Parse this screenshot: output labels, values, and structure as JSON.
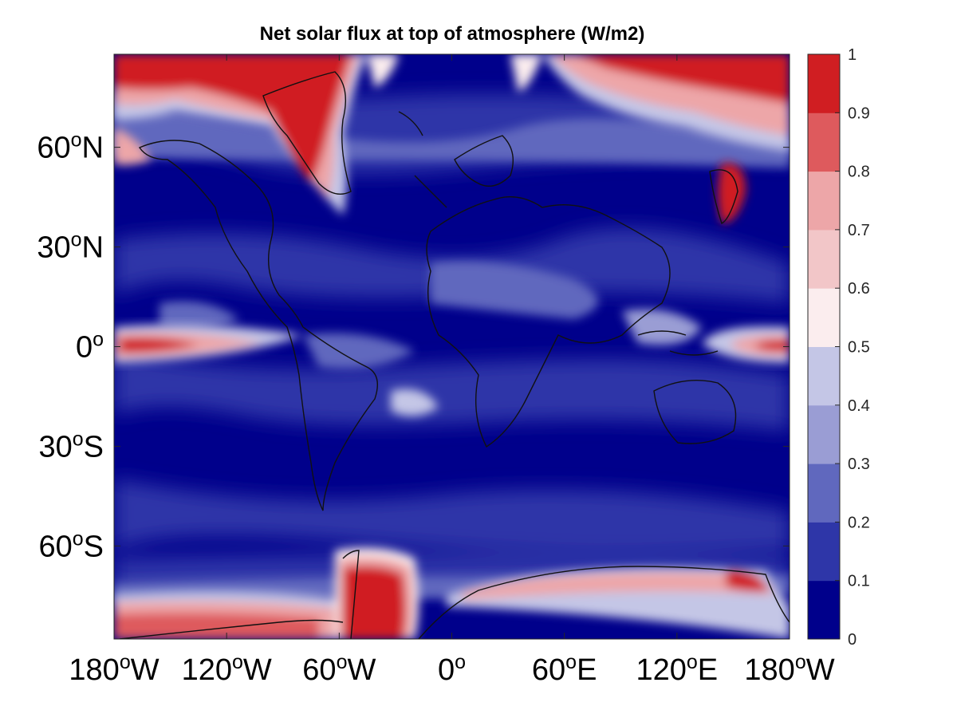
{
  "title": "Net solar flux at top of atmosphere (W/m2)",
  "map": {
    "projection": "equirectangular",
    "lon_range": [
      -180,
      180
    ],
    "lat_range": [
      -88,
      88
    ],
    "colormap": "blue-white-red",
    "colors": {
      "deep_blue": "#00008B",
      "mid_blue": "#2E36A8",
      "light_blue": "#6068BE",
      "pale_blue": "#C4C6E6",
      "white": "#FBEDEE",
      "pink": "#EDA6A8",
      "red": "#D01E22"
    },
    "lat_ticks": [
      {
        "deg": 60,
        "num": "60",
        "sup": "o",
        "hemi": "N"
      },
      {
        "deg": 30,
        "num": "30",
        "sup": "o",
        "hemi": "N"
      },
      {
        "deg": 0,
        "num": "0",
        "sup": "o",
        "hemi": ""
      },
      {
        "deg": -30,
        "num": "30",
        "sup": "o",
        "hemi": "S"
      },
      {
        "deg": -60,
        "num": "60",
        "sup": "o",
        "hemi": "S"
      }
    ],
    "lon_ticks": [
      {
        "deg": -180,
        "num": "180",
        "sup": "o",
        "hemi": "W"
      },
      {
        "deg": -120,
        "num": "120",
        "sup": "o",
        "hemi": "W"
      },
      {
        "deg": -60,
        "num": "60",
        "sup": "o",
        "hemi": "W"
      },
      {
        "deg": 0,
        "num": "0",
        "sup": "o",
        "hemi": ""
      },
      {
        "deg": 60,
        "num": "60",
        "sup": "o",
        "hemi": "E"
      },
      {
        "deg": 120,
        "num": "120",
        "sup": "o",
        "hemi": "E"
      },
      {
        "deg": 180,
        "num": "180",
        "sup": "o",
        "hemi": "W"
      }
    ]
  },
  "colorbar": {
    "levels": [
      0,
      0.1,
      0.2,
      0.3,
      0.4,
      0.5,
      0.6,
      0.7,
      0.8,
      0.9,
      1
    ],
    "tick_labels": [
      "0",
      "0.1",
      "0.2",
      "0.3",
      "0.4",
      "0.5",
      "0.6",
      "0.7",
      "0.8",
      "0.9",
      "1"
    ],
    "colors": [
      "#00008B",
      "#2E36A8",
      "#6068BE",
      "#9A9DD4",
      "#C4C6E6",
      "#FBEDEE",
      "#F2C6C8",
      "#EDA6A8",
      "#DE5A5D",
      "#D01E22"
    ]
  }
}
